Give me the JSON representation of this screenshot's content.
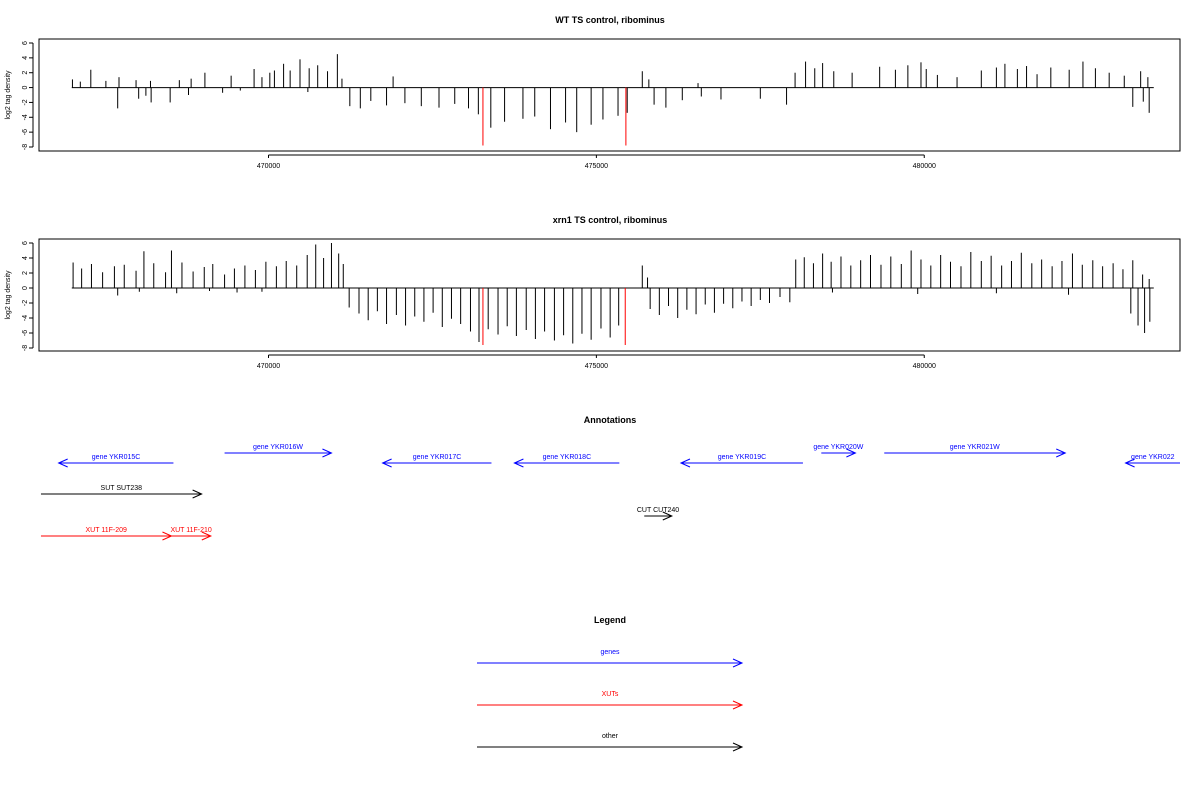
{
  "chart_data": [
    {
      "type": "bar",
      "title": "WT TS control, ribominus",
      "xlabel": "",
      "ylabel": "log2 tag density",
      "xlim": [
        466500,
        483900
      ],
      "ylim": [
        -8,
        6
      ],
      "yticks": [
        -8,
        -6,
        -4,
        -2,
        0,
        2,
        4,
        6
      ],
      "xticks": [
        470000,
        475000,
        480000
      ],
      "xtick_labels": [
        "470000",
        "475000",
        "480000"
      ],
      "positive_strand": [
        {
          "x": 467010,
          "y": 1.1
        },
        {
          "x": 467130,
          "y": 0.8
        },
        {
          "x": 467290,
          "y": 2.4
        },
        {
          "x": 467520,
          "y": 0.9
        },
        {
          "x": 467720,
          "y": 1.4
        },
        {
          "x": 467980,
          "y": 1.0
        },
        {
          "x": 468200,
          "y": 0.9
        },
        {
          "x": 468640,
          "y": 1.0
        },
        {
          "x": 468820,
          "y": 1.2
        },
        {
          "x": 469030,
          "y": 2.0
        },
        {
          "x": 469430,
          "y": 1.6
        },
        {
          "x": 469780,
          "y": 2.5
        },
        {
          "x": 469900,
          "y": 1.4
        },
        {
          "x": 470020,
          "y": 2.0
        },
        {
          "x": 470090,
          "y": 2.3
        },
        {
          "x": 470230,
          "y": 3.2
        },
        {
          "x": 470330,
          "y": 2.3
        },
        {
          "x": 470480,
          "y": 3.8
        },
        {
          "x": 470620,
          "y": 2.6
        },
        {
          "x": 470750,
          "y": 3.0
        },
        {
          "x": 470900,
          "y": 2.2
        },
        {
          "x": 471050,
          "y": 4.5
        },
        {
          "x": 471120,
          "y": 1.2
        },
        {
          "x": 471900,
          "y": 1.5
        },
        {
          "x": 475700,
          "y": 2.2
        },
        {
          "x": 475800,
          "y": 1.1
        },
        {
          "x": 476550,
          "y": 0.6
        },
        {
          "x": 478030,
          "y": 2.0
        },
        {
          "x": 478190,
          "y": 3.5
        },
        {
          "x": 478330,
          "y": 2.6
        },
        {
          "x": 478450,
          "y": 3.3
        },
        {
          "x": 478620,
          "y": 2.2
        },
        {
          "x": 478900,
          "y": 2.0
        },
        {
          "x": 479320,
          "y": 2.8
        },
        {
          "x": 479560,
          "y": 2.4
        },
        {
          "x": 479750,
          "y": 3.0
        },
        {
          "x": 479950,
          "y": 3.4
        },
        {
          "x": 480030,
          "y": 2.5
        },
        {
          "x": 480200,
          "y": 1.7
        },
        {
          "x": 480500,
          "y": 1.4
        },
        {
          "x": 480870,
          "y": 2.3
        },
        {
          "x": 481100,
          "y": 2.7
        },
        {
          "x": 481230,
          "y": 3.2
        },
        {
          "x": 481420,
          "y": 2.5
        },
        {
          "x": 481560,
          "y": 2.9
        },
        {
          "x": 481720,
          "y": 1.8
        },
        {
          "x": 481930,
          "y": 2.7
        },
        {
          "x": 482210,
          "y": 2.4
        },
        {
          "x": 482420,
          "y": 3.5
        },
        {
          "x": 482610,
          "y": 2.6
        },
        {
          "x": 482820,
          "y": 2.0
        },
        {
          "x": 483050,
          "y": 1.6
        },
        {
          "x": 483300,
          "y": 2.2
        },
        {
          "x": 483410,
          "y": 1.4
        }
      ],
      "negative_strand": [
        {
          "x": 467700,
          "y": -2.8
        },
        {
          "x": 468020,
          "y": -1.5
        },
        {
          "x": 468130,
          "y": -1.1
        },
        {
          "x": 468210,
          "y": -2.0
        },
        {
          "x": 468500,
          "y": -2.0
        },
        {
          "x": 468780,
          "y": -1.0
        },
        {
          "x": 469300,
          "y": -0.7
        },
        {
          "x": 469570,
          "y": -0.4
        },
        {
          "x": 470600,
          "y": -0.6
        },
        {
          "x": 471240,
          "y": -2.5
        },
        {
          "x": 471400,
          "y": -2.8
        },
        {
          "x": 471560,
          "y": -1.8
        },
        {
          "x": 471800,
          "y": -2.4
        },
        {
          "x": 472080,
          "y": -2.1
        },
        {
          "x": 472330,
          "y": -2.5
        },
        {
          "x": 472600,
          "y": -2.7
        },
        {
          "x": 472840,
          "y": -2.2
        },
        {
          "x": 473050,
          "y": -2.8
        },
        {
          "x": 473200,
          "y": -3.6
        },
        {
          "x": 473390,
          "y": -5.4
        },
        {
          "x": 473600,
          "y": -4.6
        },
        {
          "x": 473880,
          "y": -4.2
        },
        {
          "x": 474060,
          "y": -3.9
        },
        {
          "x": 474300,
          "y": -5.6
        },
        {
          "x": 474530,
          "y": -4.7
        },
        {
          "x": 474700,
          "y": -6.0
        },
        {
          "x": 474920,
          "y": -5.0
        },
        {
          "x": 475100,
          "y": -4.3
        },
        {
          "x": 475330,
          "y": -3.8
        },
        {
          "x": 475470,
          "y": -3.4
        },
        {
          "x": 475880,
          "y": -2.3
        },
        {
          "x": 476060,
          "y": -2.7
        },
        {
          "x": 476310,
          "y": -1.7
        },
        {
          "x": 476600,
          "y": -1.2
        },
        {
          "x": 476900,
          "y": -1.6
        },
        {
          "x": 477500,
          "y": -1.5
        },
        {
          "x": 477900,
          "y": -2.3
        },
        {
          "x": 483180,
          "y": -2.6
        },
        {
          "x": 483340,
          "y": -1.9
        },
        {
          "x": 483430,
          "y": -3.4
        }
      ],
      "highlighted": [
        {
          "x": 473270,
          "y": -7.8
        },
        {
          "x": 475450,
          "y": -7.8
        }
      ]
    },
    {
      "type": "bar",
      "title": "xrn1 TS control, ribominus",
      "xlabel": "",
      "ylabel": "log2 tag density",
      "xlim": [
        466500,
        483900
      ],
      "ylim": [
        -8,
        6
      ],
      "yticks": [
        -8,
        -6,
        -4,
        -2,
        0,
        2,
        4,
        6
      ],
      "xticks": [
        470000,
        475000,
        480000
      ],
      "xtick_labels": [
        "470000",
        "475000",
        "480000"
      ],
      "positive_strand": [
        {
          "x": 467020,
          "y": 3.4
        },
        {
          "x": 467150,
          "y": 2.6
        },
        {
          "x": 467300,
          "y": 3.2
        },
        {
          "x": 467470,
          "y": 2.1
        },
        {
          "x": 467650,
          "y": 2.9
        },
        {
          "x": 467800,
          "y": 3.1
        },
        {
          "x": 467980,
          "y": 2.3
        },
        {
          "x": 468100,
          "y": 4.9
        },
        {
          "x": 468250,
          "y": 3.3
        },
        {
          "x": 468430,
          "y": 2.1
        },
        {
          "x": 468520,
          "y": 5.0
        },
        {
          "x": 468680,
          "y": 3.4
        },
        {
          "x": 468850,
          "y": 2.2
        },
        {
          "x": 469020,
          "y": 2.8
        },
        {
          "x": 469150,
          "y": 3.2
        },
        {
          "x": 469330,
          "y": 1.8
        },
        {
          "x": 469480,
          "y": 2.6
        },
        {
          "x": 469640,
          "y": 3.0
        },
        {
          "x": 469800,
          "y": 2.4
        },
        {
          "x": 469960,
          "y": 3.5
        },
        {
          "x": 470120,
          "y": 2.9
        },
        {
          "x": 470270,
          "y": 3.6
        },
        {
          "x": 470430,
          "y": 3.0
        },
        {
          "x": 470590,
          "y": 4.4
        },
        {
          "x": 470720,
          "y": 5.8
        },
        {
          "x": 470840,
          "y": 4.0
        },
        {
          "x": 470960,
          "y": 6.0
        },
        {
          "x": 471070,
          "y": 4.6
        },
        {
          "x": 471140,
          "y": 3.2
        },
        {
          "x": 475700,
          "y": 3.0
        },
        {
          "x": 475780,
          "y": 1.4
        },
        {
          "x": 478040,
          "y": 3.8
        },
        {
          "x": 478170,
          "y": 4.1
        },
        {
          "x": 478310,
          "y": 3.3
        },
        {
          "x": 478450,
          "y": 4.6
        },
        {
          "x": 478580,
          "y": 3.5
        },
        {
          "x": 478730,
          "y": 4.2
        },
        {
          "x": 478880,
          "y": 3.0
        },
        {
          "x": 479030,
          "y": 3.7
        },
        {
          "x": 479180,
          "y": 4.4
        },
        {
          "x": 479340,
          "y": 3.1
        },
        {
          "x": 479490,
          "y": 4.2
        },
        {
          "x": 479650,
          "y": 3.2
        },
        {
          "x": 479800,
          "y": 5.0
        },
        {
          "x": 479950,
          "y": 3.8
        },
        {
          "x": 480100,
          "y": 3.0
        },
        {
          "x": 480250,
          "y": 4.4
        },
        {
          "x": 480400,
          "y": 3.5
        },
        {
          "x": 480560,
          "y": 2.9
        },
        {
          "x": 480710,
          "y": 4.8
        },
        {
          "x": 480870,
          "y": 3.6
        },
        {
          "x": 481020,
          "y": 4.3
        },
        {
          "x": 481180,
          "y": 3.0
        },
        {
          "x": 481330,
          "y": 3.6
        },
        {
          "x": 481480,
          "y": 4.7
        },
        {
          "x": 481640,
          "y": 3.3
        },
        {
          "x": 481790,
          "y": 3.8
        },
        {
          "x": 481950,
          "y": 2.9
        },
        {
          "x": 482100,
          "y": 3.6
        },
        {
          "x": 482260,
          "y": 4.6
        },
        {
          "x": 482410,
          "y": 3.1
        },
        {
          "x": 482570,
          "y": 3.7
        },
        {
          "x": 482720,
          "y": 2.9
        },
        {
          "x": 482880,
          "y": 3.3
        },
        {
          "x": 483030,
          "y": 2.5
        },
        {
          "x": 483180,
          "y": 3.7
        },
        {
          "x": 483330,
          "y": 1.8
        },
        {
          "x": 483430,
          "y": 1.2
        }
      ],
      "negative_strand": [
        {
          "x": 467700,
          "y": -1.0
        },
        {
          "x": 468030,
          "y": -0.5
        },
        {
          "x": 468600,
          "y": -0.7
        },
        {
          "x": 469100,
          "y": -0.4
        },
        {
          "x": 469520,
          "y": -0.6
        },
        {
          "x": 469900,
          "y": -0.5
        },
        {
          "x": 471230,
          "y": -2.6
        },
        {
          "x": 471380,
          "y": -3.4
        },
        {
          "x": 471520,
          "y": -4.3
        },
        {
          "x": 471660,
          "y": -3.1
        },
        {
          "x": 471800,
          "y": -4.8
        },
        {
          "x": 471950,
          "y": -3.6
        },
        {
          "x": 472090,
          "y": -5.0
        },
        {
          "x": 472230,
          "y": -3.8
        },
        {
          "x": 472370,
          "y": -4.5
        },
        {
          "x": 472510,
          "y": -3.3
        },
        {
          "x": 472650,
          "y": -5.2
        },
        {
          "x": 472790,
          "y": -4.1
        },
        {
          "x": 472930,
          "y": -4.8
        },
        {
          "x": 473080,
          "y": -5.8
        },
        {
          "x": 473210,
          "y": -7.2
        },
        {
          "x": 473350,
          "y": -5.5
        },
        {
          "x": 473500,
          "y": -6.2
        },
        {
          "x": 473640,
          "y": -5.1
        },
        {
          "x": 473780,
          "y": -6.4
        },
        {
          "x": 473930,
          "y": -5.6
        },
        {
          "x": 474070,
          "y": -6.8
        },
        {
          "x": 474210,
          "y": -5.8
        },
        {
          "x": 474360,
          "y": -7.0
        },
        {
          "x": 474500,
          "y": -6.3
        },
        {
          "x": 474640,
          "y": -7.4
        },
        {
          "x": 474780,
          "y": -6.1
        },
        {
          "x": 474920,
          "y": -6.9
        },
        {
          "x": 475070,
          "y": -5.4
        },
        {
          "x": 475210,
          "y": -6.6
        },
        {
          "x": 475340,
          "y": -5.0
        },
        {
          "x": 475820,
          "y": -2.8
        },
        {
          "x": 475960,
          "y": -3.6
        },
        {
          "x": 476100,
          "y": -2.4
        },
        {
          "x": 476240,
          "y": -4.0
        },
        {
          "x": 476380,
          "y": -2.9
        },
        {
          "x": 476520,
          "y": -3.5
        },
        {
          "x": 476660,
          "y": -2.2
        },
        {
          "x": 476800,
          "y": -3.3
        },
        {
          "x": 476940,
          "y": -2.1
        },
        {
          "x": 477080,
          "y": -2.7
        },
        {
          "x": 477220,
          "y": -1.8
        },
        {
          "x": 477360,
          "y": -2.4
        },
        {
          "x": 477500,
          "y": -1.6
        },
        {
          "x": 477640,
          "y": -2.0
        },
        {
          "x": 477800,
          "y": -1.2
        },
        {
          "x": 477950,
          "y": -1.9
        },
        {
          "x": 478600,
          "y": -0.6
        },
        {
          "x": 479900,
          "y": -0.8
        },
        {
          "x": 481100,
          "y": -0.7
        },
        {
          "x": 482200,
          "y": -0.9
        },
        {
          "x": 483150,
          "y": -3.4
        },
        {
          "x": 483260,
          "y": -5.0
        },
        {
          "x": 483360,
          "y": -6.0
        },
        {
          "x": 483440,
          "y": -4.5
        }
      ],
      "highlighted": [
        {
          "x": 473270,
          "y": -7.6
        },
        {
          "x": 475440,
          "y": -7.6
        }
      ]
    }
  ],
  "annotations": {
    "title": "Annotations",
    "xlim": [
      466500,
      483900
    ],
    "colors": {
      "genes": "#0000ff",
      "xuts": "#ff0000",
      "other": "#000000"
    },
    "features": [
      {
        "label": "gene YKR015C",
        "start": 466800,
        "end": 468550,
        "strand": "-",
        "kind": "genes"
      },
      {
        "label": "gene YKR016W",
        "start": 469330,
        "end": 470960,
        "strand": "+",
        "kind": "genes"
      },
      {
        "label": "gene YKR017C",
        "start": 471740,
        "end": 473400,
        "strand": "-",
        "kind": "genes"
      },
      {
        "label": "gene YKR018C",
        "start": 473750,
        "end": 475350,
        "strand": "-",
        "kind": "genes"
      },
      {
        "label": "gene YKR019C",
        "start": 476290,
        "end": 478150,
        "strand": "-",
        "kind": "genes"
      },
      {
        "label": "gene YKR020W",
        "start": 478430,
        "end": 478950,
        "strand": "+",
        "kind": "genes"
      },
      {
        "label": "gene YKR021W",
        "start": 479390,
        "end": 482150,
        "strand": "+",
        "kind": "genes"
      },
      {
        "label": "gene YKR022",
        "start": 483070,
        "end": 483900,
        "strand": "-",
        "kind": "genes"
      },
      {
        "label": "SUT SUT238",
        "start": 466530,
        "end": 468980,
        "strand": "+",
        "kind": "other"
      },
      {
        "label": "CUT CUT240",
        "start": 475730,
        "end": 476150,
        "strand": "+",
        "kind": "other"
      },
      {
        "label": "XUT 11F-209",
        "start": 466530,
        "end": 468520,
        "strand": "+",
        "kind": "xuts"
      },
      {
        "label": "XUT 11F-210",
        "start": 468520,
        "end": 469120,
        "strand": "+",
        "kind": "xuts"
      }
    ]
  },
  "legend": {
    "title": "Legend",
    "entries": [
      {
        "label": "genes",
        "color": "#0000ff"
      },
      {
        "label": "XUTs",
        "color": "#ff0000"
      },
      {
        "label": "other",
        "color": "#000000"
      }
    ]
  }
}
